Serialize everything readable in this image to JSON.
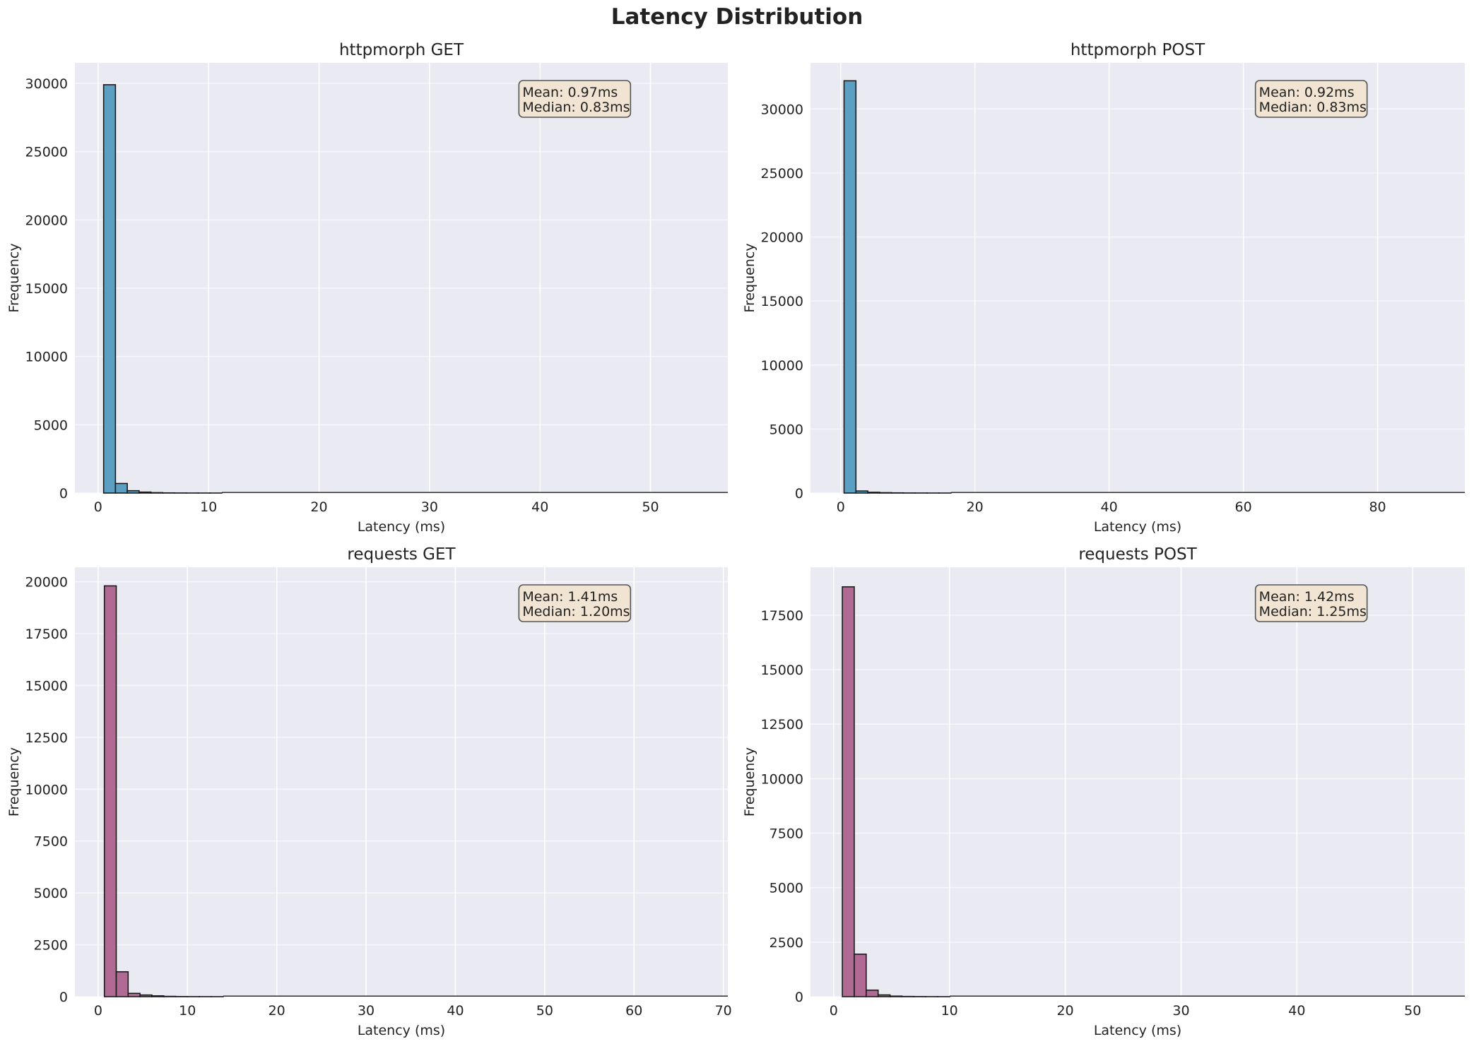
{
  "figure": {
    "suptitle": "Latency Distribution",
    "colors": {
      "background": "#eaeaf2",
      "grid": "#ffffff",
      "httpmorph": "#5b9fc2",
      "requests": "#b06a93",
      "edge": "#1a1a1a",
      "statbox": "#f1e4d2"
    }
  },
  "chart_data": [
    {
      "type": "bar",
      "title": "httpmorph GET",
      "xlabel": "Latency (ms)",
      "ylabel": "Frequency",
      "color_key": "httpmorph",
      "xlim": [
        -2.1,
        57
      ],
      "ylim": [
        0,
        31500
      ],
      "xticks": [
        0,
        10,
        20,
        30,
        40,
        50
      ],
      "xtick_labels": [
        "0",
        "10",
        "20",
        "30",
        "40",
        "50"
      ],
      "yticks": [
        0,
        5000,
        10000,
        15000,
        20000,
        25000,
        30000
      ],
      "ytick_labels": [
        "0",
        "5000",
        "10000",
        "15000",
        "20000",
        "25000",
        "30000"
      ],
      "bin_start": 0.5,
      "bin_width": 1.07,
      "x_end": 57,
      "counts": [
        29900,
        700,
        170,
        70,
        30,
        12,
        6,
        3,
        2,
        1
      ],
      "stats": {
        "mean": "Mean: 0.97ms",
        "median": "Median: 0.83ms"
      }
    },
    {
      "type": "bar",
      "title": "httpmorph POST",
      "xlabel": "Latency (ms)",
      "ylabel": "Frequency",
      "color_key": "httpmorph",
      "xlim": [
        -4.5,
        93
      ],
      "ylim": [
        0,
        33600
      ],
      "xticks": [
        0,
        20,
        40,
        60,
        80
      ],
      "xtick_labels": [
        "0",
        "20",
        "40",
        "60",
        "80"
      ],
      "yticks": [
        0,
        5000,
        10000,
        15000,
        20000,
        25000,
        30000
      ],
      "ytick_labels": [
        "0",
        "5000",
        "10000",
        "15000",
        "20000",
        "25000",
        "30000"
      ],
      "bin_start": 0.5,
      "bin_width": 1.77,
      "x_end": 93,
      "counts": [
        32200,
        160,
        60,
        30,
        15,
        8,
        4,
        2,
        1
      ],
      "stats": {
        "mean": "Mean: 0.92ms",
        "median": "Median: 0.83ms"
      }
    },
    {
      "type": "bar",
      "title": "requests GET",
      "xlabel": "Latency (ms)",
      "ylabel": "Frequency",
      "color_key": "requests",
      "xlim": [
        -2.6,
        70.5
      ],
      "ylim": [
        0,
        20700
      ],
      "xticks": [
        0,
        10,
        20,
        30,
        40,
        50,
        60,
        70
      ],
      "xtick_labels": [
        "0",
        "10",
        "20",
        "30",
        "40",
        "50",
        "60",
        "70"
      ],
      "yticks": [
        0,
        2500,
        5000,
        7500,
        10000,
        12500,
        15000,
        17500,
        20000
      ],
      "ytick_labels": [
        "0",
        "2500",
        "5000",
        "7500",
        "10000",
        "12500",
        "15000",
        "17500",
        "20000"
      ],
      "bin_start": 0.7,
      "bin_width": 1.33,
      "x_end": 70.5,
      "counts": [
        19800,
        1200,
        160,
        80,
        40,
        15,
        6,
        3,
        2,
        1
      ],
      "stats": {
        "mean": "Mean: 1.41ms",
        "median": "Median: 1.20ms"
      }
    },
    {
      "type": "bar",
      "title": "requests POST",
      "xlabel": "Latency (ms)",
      "ylabel": "Frequency",
      "color_key": "requests",
      "xlim": [
        -2.0,
        54.5
      ],
      "ylim": [
        0,
        19700
      ],
      "xticks": [
        0,
        10,
        20,
        30,
        40,
        50
      ],
      "xtick_labels": [
        "0",
        "10",
        "20",
        "30",
        "40",
        "50"
      ],
      "yticks": [
        0,
        2500,
        5000,
        7500,
        10000,
        12500,
        15000,
        17500
      ],
      "ytick_labels": [
        "0",
        "2500",
        "5000",
        "7500",
        "10000",
        "12500",
        "15000",
        "17500"
      ],
      "bin_start": 0.75,
      "bin_width": 1.03,
      "x_end": 54.5,
      "counts": [
        18800,
        1950,
        300,
        80,
        25,
        10,
        5,
        2,
        1
      ],
      "stats": {
        "mean": "Mean: 1.42ms",
        "median": "Median: 1.25ms"
      }
    }
  ]
}
